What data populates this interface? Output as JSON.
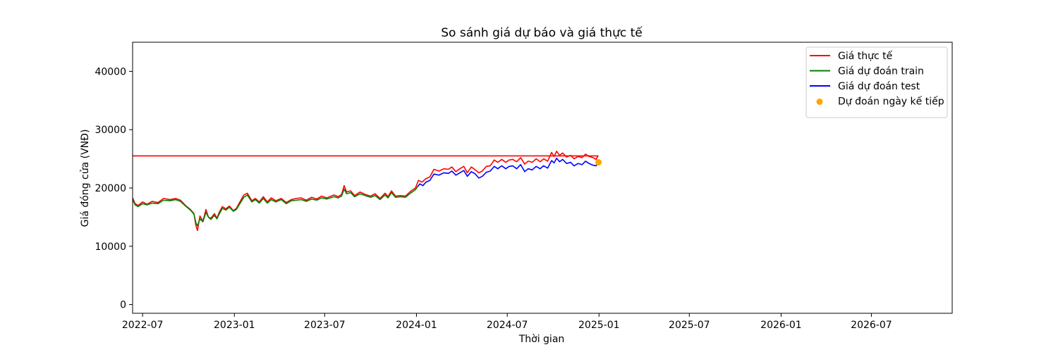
{
  "chart_data": {
    "type": "line",
    "title": "So sánh giá dự báo và giá thực tế",
    "xlabel": "Thời gian",
    "ylabel": "Giá đóng cửa (VNĐ)",
    "xlim": [
      "2022-06-11",
      "2026-12-10"
    ],
    "ylim": [
      -1500,
      45000
    ],
    "x_ticks": [
      "2022-07",
      "2023-01",
      "2023-07",
      "2024-01",
      "2024-07",
      "2025-01",
      "2025-07",
      "2026-01",
      "2026-07"
    ],
    "y_ticks": [
      0,
      10000,
      20000,
      30000,
      40000
    ],
    "grid": false,
    "legend_position": "top-right",
    "series": [
      {
        "name": "Giá thực tế",
        "color": "#ff0000",
        "kind": "line",
        "points": [
          [
            "2022-06-11",
            18300
          ],
          [
            "2022-06-16",
            17300
          ],
          [
            "2022-06-22",
            17000
          ],
          [
            "2022-07-01",
            17600
          ],
          [
            "2022-07-10",
            17200
          ],
          [
            "2022-07-20",
            17700
          ],
          [
            "2022-08-01",
            17500
          ],
          [
            "2022-08-12",
            18200
          ],
          [
            "2022-08-25",
            18000
          ],
          [
            "2022-09-05",
            18200
          ],
          [
            "2022-09-15",
            17900
          ],
          [
            "2022-09-25",
            17000
          ],
          [
            "2022-10-05",
            16300
          ],
          [
            "2022-10-12",
            15600
          ],
          [
            "2022-10-16",
            13500
          ],
          [
            "2022-10-19",
            12700
          ],
          [
            "2022-10-24",
            15200
          ],
          [
            "2022-10-30",
            14300
          ],
          [
            "2022-11-05",
            16300
          ],
          [
            "2022-11-10",
            15000
          ],
          [
            "2022-11-15",
            14800
          ],
          [
            "2022-11-22",
            15600
          ],
          [
            "2022-11-27",
            14800
          ],
          [
            "2022-12-02",
            15900
          ],
          [
            "2022-12-08",
            16800
          ],
          [
            "2022-12-15",
            16400
          ],
          [
            "2022-12-22",
            16900
          ],
          [
            "2022-12-30",
            16100
          ],
          [
            "2023-01-05",
            16500
          ],
          [
            "2023-01-12",
            17600
          ],
          [
            "2023-01-20",
            18800
          ],
          [
            "2023-01-27",
            19100
          ],
          [
            "2023-02-05",
            17800
          ],
          [
            "2023-02-12",
            18200
          ],
          [
            "2023-02-20",
            17600
          ],
          [
            "2023-02-28",
            18500
          ],
          [
            "2023-03-08",
            17600
          ],
          [
            "2023-03-16",
            18300
          ],
          [
            "2023-03-25",
            17800
          ],
          [
            "2023-04-05",
            18200
          ],
          [
            "2023-04-15",
            17500
          ],
          [
            "2023-04-25",
            18000
          ],
          [
            "2023-05-05",
            18200
          ],
          [
            "2023-05-15",
            18300
          ],
          [
            "2023-05-25",
            17900
          ],
          [
            "2023-06-05",
            18400
          ],
          [
            "2023-06-15",
            18100
          ],
          [
            "2023-06-25",
            18600
          ],
          [
            "2023-07-05",
            18300
          ],
          [
            "2023-07-20",
            18800
          ],
          [
            "2023-07-28",
            18500
          ],
          [
            "2023-08-04",
            18900
          ],
          [
            "2023-08-09",
            20400
          ],
          [
            "2023-08-14",
            19300
          ],
          [
            "2023-08-22",
            19500
          ],
          [
            "2023-08-30",
            18700
          ],
          [
            "2023-09-10",
            19300
          ],
          [
            "2023-09-20",
            18900
          ],
          [
            "2023-10-01",
            18600
          ],
          [
            "2023-10-10",
            19000
          ],
          [
            "2023-10-20",
            18200
          ],
          [
            "2023-10-30",
            19100
          ],
          [
            "2023-11-05",
            18500
          ],
          [
            "2023-11-12",
            19500
          ],
          [
            "2023-11-20",
            18600
          ],
          [
            "2023-11-30",
            18700
          ],
          [
            "2023-12-10",
            18600
          ],
          [
            "2023-12-20",
            19400
          ],
          [
            "2023-12-30",
            20000
          ],
          [
            "2024-01-05",
            21300
          ],
          [
            "2024-01-12",
            21000
          ],
          [
            "2024-01-20",
            21600
          ],
          [
            "2024-01-28",
            21900
          ],
          [
            "2024-02-05",
            23200
          ],
          [
            "2024-02-15",
            22900
          ],
          [
            "2024-02-25",
            23300
          ],
          [
            "2024-03-05",
            23200
          ],
          [
            "2024-03-12",
            23600
          ],
          [
            "2024-03-20",
            22800
          ],
          [
            "2024-03-28",
            23300
          ],
          [
            "2024-04-05",
            23700
          ],
          [
            "2024-04-12",
            22600
          ],
          [
            "2024-04-20",
            23600
          ],
          [
            "2024-04-28",
            23100
          ],
          [
            "2024-05-05",
            22600
          ],
          [
            "2024-05-12",
            22900
          ],
          [
            "2024-05-20",
            23700
          ],
          [
            "2024-05-28",
            23800
          ],
          [
            "2024-06-05",
            24800
          ],
          [
            "2024-06-12",
            24400
          ],
          [
            "2024-06-20",
            24900
          ],
          [
            "2024-06-28",
            24400
          ],
          [
            "2024-07-05",
            24800
          ],
          [
            "2024-07-12",
            24900
          ],
          [
            "2024-07-20",
            24500
          ],
          [
            "2024-07-28",
            25200
          ],
          [
            "2024-08-05",
            24100
          ],
          [
            "2024-08-12",
            24600
          ],
          [
            "2024-08-20",
            24400
          ],
          [
            "2024-08-28",
            25000
          ],
          [
            "2024-09-05",
            24500
          ],
          [
            "2024-09-12",
            25000
          ],
          [
            "2024-09-20",
            24600
          ],
          [
            "2024-09-28",
            26100
          ],
          [
            "2024-10-03",
            25400
          ],
          [
            "2024-10-08",
            26300
          ],
          [
            "2024-10-14",
            25600
          ],
          [
            "2024-10-20",
            26000
          ],
          [
            "2024-10-28",
            25300
          ],
          [
            "2024-11-05",
            25600
          ],
          [
            "2024-11-12",
            25000
          ],
          [
            "2024-11-20",
            25400
          ],
          [
            "2024-11-28",
            25200
          ],
          [
            "2024-12-05",
            25800
          ],
          [
            "2024-12-12",
            25400
          ],
          [
            "2024-12-20",
            25200
          ],
          [
            "2024-12-26",
            24900
          ],
          [
            "2024-12-30",
            25500
          ],
          [
            "2022-06-11",
            25500
          ]
        ]
      },
      {
        "name": "Giá dự đoán train",
        "color": "#008000",
        "kind": "line",
        "points": [
          [
            "2022-06-11",
            18000
          ],
          [
            "2022-06-16",
            17100
          ],
          [
            "2022-06-22",
            16800
          ],
          [
            "2022-07-01",
            17300
          ],
          [
            "2022-07-10",
            17100
          ],
          [
            "2022-07-20",
            17400
          ],
          [
            "2022-08-01",
            17300
          ],
          [
            "2022-08-12",
            17900
          ],
          [
            "2022-08-25",
            17800
          ],
          [
            "2022-09-05",
            18000
          ],
          [
            "2022-09-15",
            17700
          ],
          [
            "2022-09-25",
            16900
          ],
          [
            "2022-10-05",
            16200
          ],
          [
            "2022-10-12",
            15500
          ],
          [
            "2022-10-16",
            14000
          ],
          [
            "2022-10-19",
            13500
          ],
          [
            "2022-10-24",
            14700
          ],
          [
            "2022-10-30",
            14200
          ],
          [
            "2022-11-05",
            15800
          ],
          [
            "2022-11-10",
            15000
          ],
          [
            "2022-11-15",
            14600
          ],
          [
            "2022-11-22",
            15300
          ],
          [
            "2022-11-27",
            14700
          ],
          [
            "2022-12-02",
            15600
          ],
          [
            "2022-12-08",
            16500
          ],
          [
            "2022-12-15",
            16200
          ],
          [
            "2022-12-22",
            16700
          ],
          [
            "2022-12-30",
            16000
          ],
          [
            "2023-01-05",
            16300
          ],
          [
            "2023-01-12",
            17300
          ],
          [
            "2023-01-20",
            18400
          ],
          [
            "2023-01-27",
            18800
          ],
          [
            "2023-02-05",
            17600
          ],
          [
            "2023-02-12",
            18000
          ],
          [
            "2023-02-20",
            17400
          ],
          [
            "2023-02-28",
            18200
          ],
          [
            "2023-03-08",
            17400
          ],
          [
            "2023-03-16",
            18000
          ],
          [
            "2023-03-25",
            17600
          ],
          [
            "2023-04-05",
            18000
          ],
          [
            "2023-04-15",
            17300
          ],
          [
            "2023-04-25",
            17800
          ],
          [
            "2023-05-05",
            17900
          ],
          [
            "2023-05-15",
            18000
          ],
          [
            "2023-05-25",
            17700
          ],
          [
            "2023-06-05",
            18100
          ],
          [
            "2023-06-15",
            17900
          ],
          [
            "2023-06-25",
            18300
          ],
          [
            "2023-07-05",
            18100
          ],
          [
            "2023-07-20",
            18500
          ],
          [
            "2023-07-28",
            18300
          ],
          [
            "2023-08-04",
            18600
          ],
          [
            "2023-08-09",
            19800
          ],
          [
            "2023-08-14",
            19000
          ],
          [
            "2023-08-22",
            19200
          ],
          [
            "2023-08-30",
            18500
          ],
          [
            "2023-09-10",
            19000
          ],
          [
            "2023-09-20",
            18700
          ],
          [
            "2023-10-01",
            18400
          ],
          [
            "2023-10-10",
            18700
          ],
          [
            "2023-10-20",
            18000
          ],
          [
            "2023-10-30",
            18800
          ],
          [
            "2023-11-05",
            18300
          ],
          [
            "2023-11-12",
            19200
          ],
          [
            "2023-11-20",
            18400
          ],
          [
            "2023-11-30",
            18500
          ],
          [
            "2023-12-10",
            18400
          ],
          [
            "2023-12-20",
            19100
          ],
          [
            "2023-12-30",
            19700
          ],
          [
            "2024-01-03",
            20200
          ]
        ]
      },
      {
        "name": "Giá dự đoán test",
        "color": "#0000ff",
        "kind": "line",
        "points": [
          [
            "2024-01-03",
            20200
          ],
          [
            "2024-01-08",
            20700
          ],
          [
            "2024-01-14",
            20400
          ],
          [
            "2024-01-20",
            21000
          ],
          [
            "2024-01-28",
            21300
          ],
          [
            "2024-02-05",
            22400
          ],
          [
            "2024-02-15",
            22200
          ],
          [
            "2024-02-25",
            22600
          ],
          [
            "2024-03-05",
            22500
          ],
          [
            "2024-03-12",
            22900
          ],
          [
            "2024-03-20",
            22200
          ],
          [
            "2024-03-28",
            22600
          ],
          [
            "2024-04-05",
            23000
          ],
          [
            "2024-04-12",
            22000
          ],
          [
            "2024-04-20",
            22800
          ],
          [
            "2024-04-28",
            22400
          ],
          [
            "2024-05-05",
            21700
          ],
          [
            "2024-05-12",
            22000
          ],
          [
            "2024-05-20",
            22700
          ],
          [
            "2024-05-28",
            22900
          ],
          [
            "2024-06-05",
            23700
          ],
          [
            "2024-06-12",
            23300
          ],
          [
            "2024-06-20",
            23800
          ],
          [
            "2024-06-28",
            23300
          ],
          [
            "2024-07-05",
            23700
          ],
          [
            "2024-07-12",
            23800
          ],
          [
            "2024-07-20",
            23300
          ],
          [
            "2024-07-28",
            24000
          ],
          [
            "2024-08-05",
            22800
          ],
          [
            "2024-08-12",
            23300
          ],
          [
            "2024-08-20",
            23100
          ],
          [
            "2024-08-28",
            23700
          ],
          [
            "2024-09-05",
            23300
          ],
          [
            "2024-09-12",
            23800
          ],
          [
            "2024-09-20",
            23400
          ],
          [
            "2024-09-28",
            24700
          ],
          [
            "2024-10-03",
            24300
          ],
          [
            "2024-10-08",
            25100
          ],
          [
            "2024-10-14",
            24500
          ],
          [
            "2024-10-20",
            24900
          ],
          [
            "2024-10-28",
            24200
          ],
          [
            "2024-11-05",
            24400
          ],
          [
            "2024-11-12",
            23800
          ],
          [
            "2024-11-20",
            24200
          ],
          [
            "2024-11-28",
            24000
          ],
          [
            "2024-12-05",
            24600
          ],
          [
            "2024-12-12",
            24200
          ],
          [
            "2024-12-20",
            23900
          ],
          [
            "2024-12-26",
            23800
          ],
          [
            "2024-12-30",
            24300
          ]
        ]
      },
      {
        "name": "Dự đoán ngày kế tiếp",
        "color": "#ffa500",
        "kind": "scatter",
        "points": [
          [
            "2024-12-31",
            24400
          ]
        ]
      }
    ]
  }
}
